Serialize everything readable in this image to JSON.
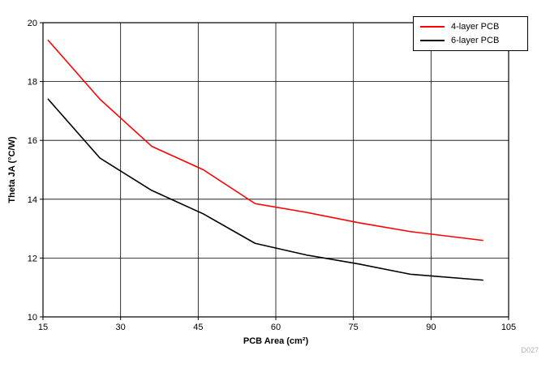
{
  "chart_data": {
    "type": "line",
    "title": "",
    "xlabel": "PCB Area (cm²)",
    "ylabel": "Theta JA (°C/W)",
    "xlim": [
      15,
      105
    ],
    "ylim": [
      10,
      20
    ],
    "xticks": [
      15,
      30,
      45,
      60,
      75,
      90,
      105
    ],
    "yticks": [
      10,
      12,
      14,
      16,
      18,
      20
    ],
    "grid": true,
    "legend_position": "top-right",
    "series": [
      {
        "name": "4-layer PCB",
        "color": "#ff0000",
        "x": [
          16,
          26,
          36,
          46,
          56,
          66,
          76,
          86,
          100
        ],
        "y": [
          19.4,
          17.4,
          15.8,
          15.0,
          13.85,
          13.55,
          13.2,
          12.9,
          12.6
        ]
      },
      {
        "name": "6-layer PCB",
        "color": "#000000",
        "x": [
          16,
          26,
          36,
          46,
          56,
          66,
          76,
          86,
          100
        ],
        "y": [
          17.4,
          15.4,
          14.3,
          13.5,
          12.5,
          12.1,
          11.8,
          11.45,
          11.25
        ]
      }
    ],
    "watermark": "D027"
  }
}
